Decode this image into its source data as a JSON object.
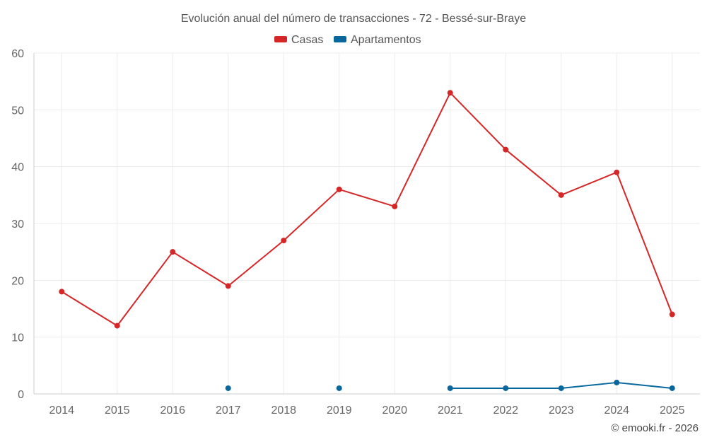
{
  "chart_data": {
    "type": "line",
    "title": "Evolución anual del número de transacciones - 72 - Bessé-sur-Braye",
    "categories": [
      "2014",
      "2015",
      "2016",
      "2017",
      "2018",
      "2019",
      "2020",
      "2021",
      "2022",
      "2023",
      "2024",
      "2025"
    ],
    "ylim": [
      0,
      60
    ],
    "yticks": [
      0,
      10,
      20,
      30,
      40,
      50,
      60
    ],
    "grid": true,
    "legend_position": "top-center",
    "series": [
      {
        "name": "Casas",
        "color": "#d62728",
        "values": [
          18,
          12,
          25,
          19,
          27,
          36,
          33,
          53,
          43,
          35,
          39,
          14
        ]
      },
      {
        "name": "Apartamentos",
        "color": "#08689e",
        "values": [
          null,
          null,
          null,
          1,
          null,
          1,
          null,
          1,
          1,
          1,
          2,
          1
        ]
      }
    ]
  },
  "credit": "© emooki.fr - 2026"
}
